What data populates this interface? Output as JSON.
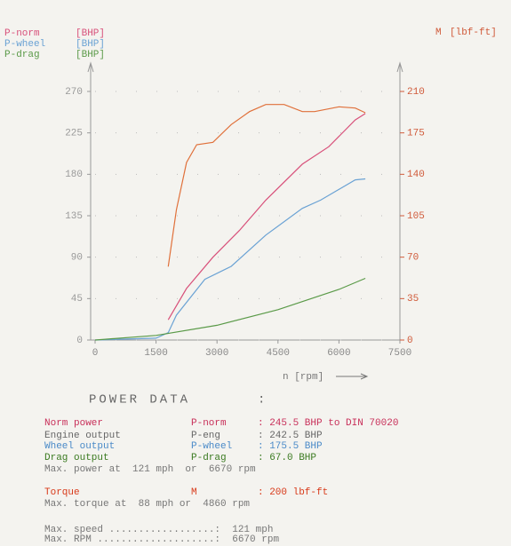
{
  "chart_data": {
    "type": "line",
    "y_unit": "[BHP]",
    "y2label": "[lbf-ft]",
    "xlabel": "n [rpm]",
    "xlim": [
      0,
      7500
    ],
    "xticks": [
      0,
      1500,
      3000,
      4500,
      6000,
      7500
    ],
    "ylim": [
      0,
      270
    ],
    "yticks": [
      0,
      45,
      90,
      135,
      180,
      225,
      270
    ],
    "y2lim": [
      0,
      210
    ],
    "y2ticks": [
      0,
      35,
      70,
      105,
      140,
      175,
      210
    ],
    "grid": true,
    "series": [
      {
        "name": "P-norm",
        "color": "#d8507a",
        "axis": "y",
        "x": [
          1800,
          2250,
          2900,
          3550,
          4200,
          5100,
          5750,
          6400,
          6650
        ],
        "values": [
          22,
          56,
          90,
          119,
          152,
          191,
          210,
          239,
          246
        ]
      },
      {
        "name": "P-wheel",
        "color": "#6aa2d4",
        "axis": "y",
        "x": [
          0,
          1500,
          1800,
          2000,
          2700,
          3350,
          4200,
          5100,
          5550,
          6400,
          6650
        ],
        "values": [
          0,
          2,
          8,
          27,
          66,
          80,
          114,
          143,
          152,
          174,
          175
        ]
      },
      {
        "name": "P-drag",
        "color": "#5a9a48",
        "axis": "y",
        "x": [
          0,
          1500,
          3000,
          4500,
          6000,
          6650
        ],
        "values": [
          0,
          5,
          16,
          33,
          55,
          67
        ]
      },
      {
        "name": "M",
        "color": "#e0703a",
        "axis": "y2",
        "x": [
          1800,
          2000,
          2250,
          2500,
          2900,
          3350,
          3800,
          4200,
          4650,
          5100,
          5400,
          6000,
          6400,
          6650
        ],
        "values": [
          62,
          110,
          150,
          165,
          167,
          182,
          193,
          199,
          199,
          193,
          193,
          197,
          196,
          192
        ]
      }
    ]
  },
  "report": {
    "title": "POWER DATA",
    "title_colon": ":",
    "rows": [
      {
        "color": "#c8305a",
        "cells": [
          "Norm power",
          "P-norm",
          ": 245.5 BHP to DIN 70020"
        ]
      },
      {
        "color": "#666666",
        "cells": [
          "Engine output",
          "P-eng",
          ": 242.5 BHP"
        ]
      },
      {
        "color": "#4a8ac8",
        "cells": [
          "Wheel output",
          "P-wheel",
          ": 175.5 BHP"
        ]
      },
      {
        "color": "#3a7a20",
        "cells": [
          "Drag output",
          "P-drag",
          ": 67.0 BHP"
        ]
      },
      {
        "color": "#777777",
        "cells": [
          "Max. power at  121 mph  or  6670 rpm"
        ]
      },
      {
        "color": "#d83a1a",
        "cells": [
          "Torque",
          "M",
          ": 200 lbf-ft"
        ]
      },
      {
        "color": "#777777",
        "cells": [
          "Max. torque at  88 mph or  4860 rpm"
        ]
      },
      {
        "color": "#777777",
        "cells": [
          "Max. speed ..................:  121 mph"
        ]
      },
      {
        "color": "#777777",
        "cells": [
          "Max. RPM ....................:  6670 rpm"
        ]
      }
    ]
  }
}
